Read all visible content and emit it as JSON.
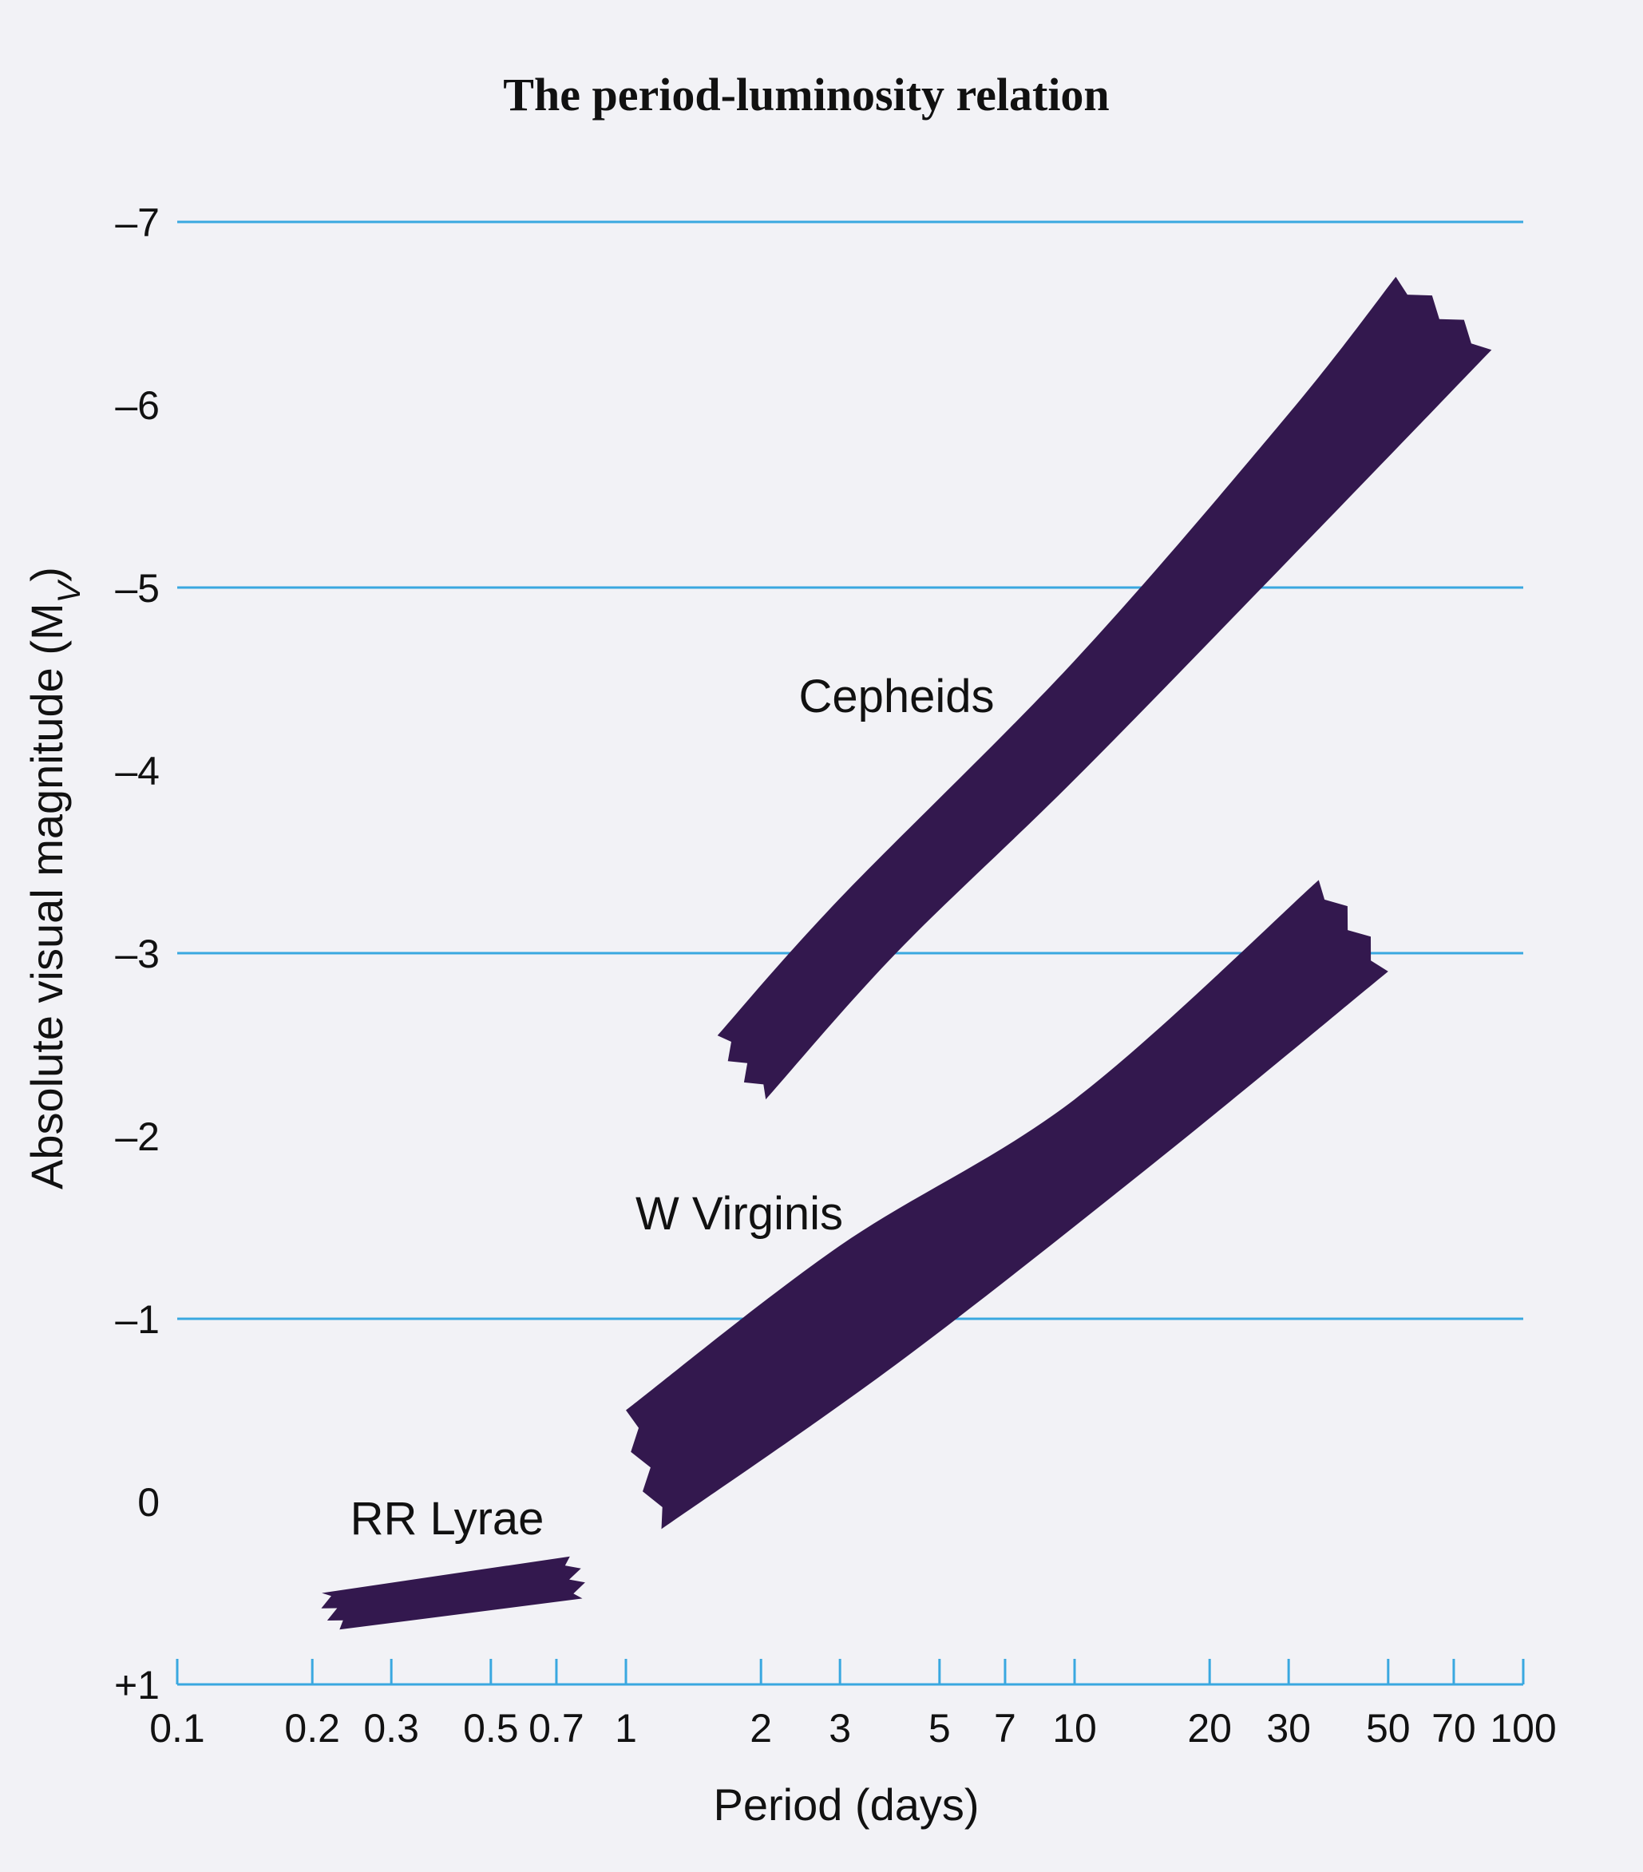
{
  "chart_data": {
    "type": "area",
    "title": "The period-luminosity relation",
    "xlabel": "Period (days)",
    "ylabel": "Absolute visual magnitude (M",
    "ylabel_sub": "V",
    "ylabel_close": ")",
    "x_scale": "log",
    "xlim": [
      0.1,
      100
    ],
    "ylim": [
      1,
      -7
    ],
    "x_ticks": [
      {
        "value": 0.1,
        "label": "0.1"
      },
      {
        "value": 0.2,
        "label": "0.2"
      },
      {
        "value": 0.3,
        "label": "0.3"
      },
      {
        "value": 0.5,
        "label": "0.5"
      },
      {
        "value": 0.7,
        "label": "0.7"
      },
      {
        "value": 1,
        "label": "1"
      },
      {
        "value": 2,
        "label": "2"
      },
      {
        "value": 3,
        "label": "3"
      },
      {
        "value": 5,
        "label": "5"
      },
      {
        "value": 7,
        "label": "7"
      },
      {
        "value": 10,
        "label": "10"
      },
      {
        "value": 20,
        "label": "20"
      },
      {
        "value": 30,
        "label": "30"
      },
      {
        "value": 50,
        "label": "50"
      },
      {
        "value": 70,
        "label": "70"
      },
      {
        "value": 100,
        "label": "100"
      }
    ],
    "y_ticks": [
      {
        "value": -7,
        "label": "–7"
      },
      {
        "value": -6,
        "label": "–6"
      },
      {
        "value": -5,
        "label": "–5"
      },
      {
        "value": -4,
        "label": "–4"
      },
      {
        "value": -3,
        "label": "–3"
      },
      {
        "value": -2,
        "label": "–2"
      },
      {
        "value": -1,
        "label": "–1"
      },
      {
        "value": 0,
        "label": "0"
      },
      {
        "value": 1,
        "label": "+1"
      }
    ],
    "gridlines_y": [
      -7,
      -5,
      -3,
      -1
    ],
    "grid": "horizontal",
    "colors": {
      "band": "#33184e",
      "grid": "#3aa8e0",
      "axis": "#3aa8e0",
      "background": "#f2f2f6"
    },
    "series": [
      {
        "name": "Cepheids",
        "upper": [
          [
            1.6,
            -2.55
          ],
          [
            3,
            -3.3
          ],
          [
            10,
            -4.6
          ],
          [
            30,
            -5.95
          ],
          [
            52,
            -6.7
          ]
        ],
        "lower": [
          [
            2.05,
            -2.2
          ],
          [
            4,
            -3.0
          ],
          [
            10,
            -3.95
          ],
          [
            30,
            -5.15
          ],
          [
            85,
            -6.3
          ]
        ]
      },
      {
        "name": "W Virginis",
        "upper": [
          [
            1.0,
            -0.5
          ],
          [
            3,
            -1.4
          ],
          [
            10,
            -2.2
          ],
          [
            35,
            -3.4
          ]
        ],
        "lower": [
          [
            1.2,
            0.15
          ],
          [
            4,
            -0.75
          ],
          [
            15,
            -1.85
          ],
          [
            50,
            -2.9
          ]
        ]
      },
      {
        "name": "RR Lyrae",
        "upper": [
          [
            0.21,
            0.5
          ],
          [
            0.75,
            0.3
          ]
        ],
        "lower": [
          [
            0.23,
            0.7
          ],
          [
            0.8,
            0.53
          ]
        ]
      }
    ]
  }
}
